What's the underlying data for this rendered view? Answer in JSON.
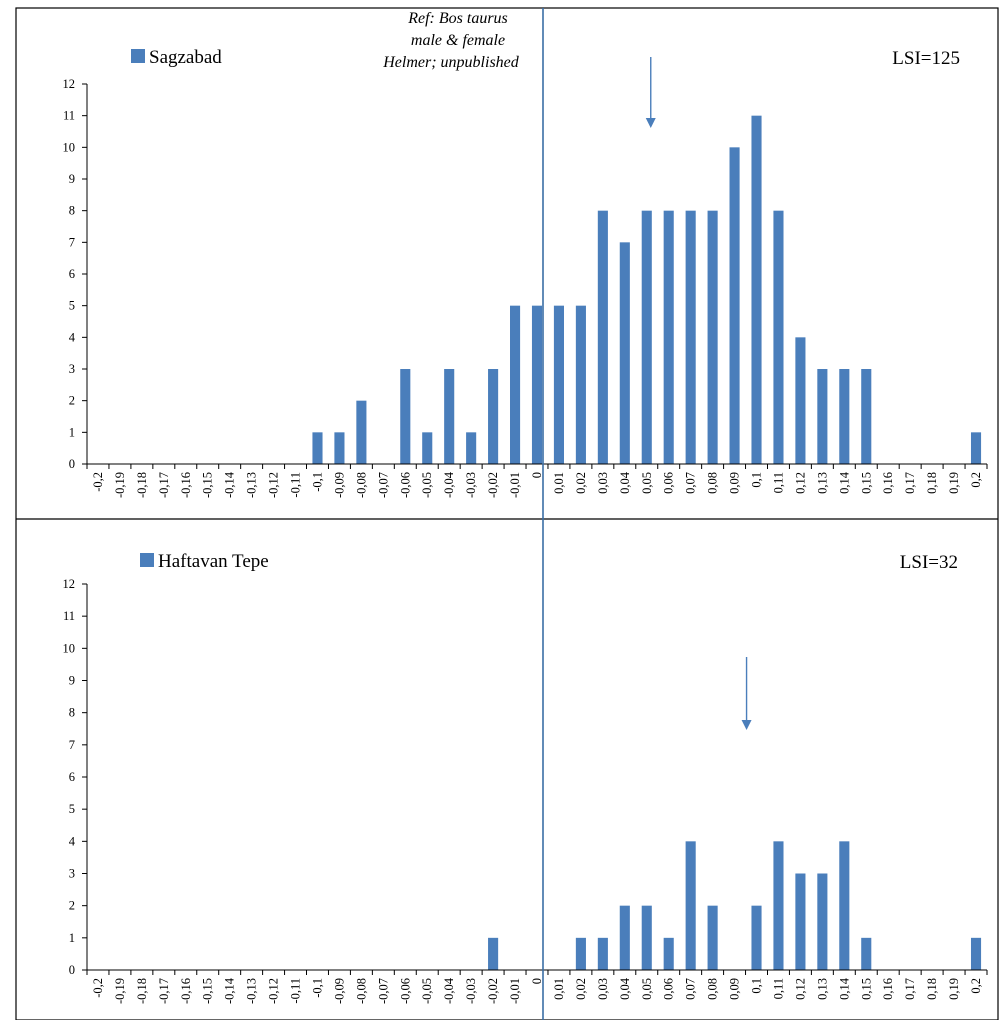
{
  "chart_data": [
    {
      "type": "bar",
      "legend_label": "Sagzabad",
      "legend_position": "top-left",
      "annotation": "LSI=125",
      "reference_note": [
        "Ref: Bos taurus",
        "male & female",
        "Helmer; unpublished"
      ],
      "marker_arrow_at": 0.05,
      "reference_line_at": 0,
      "categories": [
        "-0,2",
        "-0,19",
        "-0,18",
        "-0,17",
        "-0,16",
        "-0,15",
        "-0,14",
        "-0,13",
        "-0,12",
        "-0,11",
        "-0,1",
        "-0,09",
        "-0,08",
        "-0,07",
        "-0,06",
        "-0,05",
        "-0,04",
        "-0,03",
        "-0,02",
        "-0,01",
        "0",
        "0,01",
        "0,02",
        "0,03",
        "0,04",
        "0,05",
        "0,06",
        "0,07",
        "0,08",
        "0,09",
        "0,1",
        "0,11",
        "0,12",
        "0,13",
        "0,14",
        "0,15",
        "0,16",
        "0,17",
        "0,18",
        "0,19",
        "0,2"
      ],
      "values": [
        0,
        0,
        0,
        0,
        0,
        0,
        0,
        0,
        0,
        0,
        1,
        1,
        2,
        0,
        3,
        1,
        3,
        1,
        3,
        5,
        5,
        5,
        5,
        8,
        7,
        8,
        8,
        8,
        8,
        10,
        11,
        8,
        4,
        3,
        3,
        3,
        0,
        0,
        0,
        0,
        1
      ],
      "ylim": [
        0,
        12
      ],
      "yticks": [
        0,
        1,
        2,
        3,
        4,
        5,
        6,
        7,
        8,
        9,
        10,
        11,
        12
      ],
      "grid": false,
      "color": "#4a7ebb"
    },
    {
      "type": "bar",
      "legend_label": "Haftavan Tepe",
      "legend_position": "top-left",
      "annotation": "LSI=32",
      "marker_arrow_at": 0.09,
      "reference_line_at": 0,
      "categories": [
        "-0,2",
        "-0,19",
        "-0,18",
        "-0,17",
        "-0,16",
        "-0,15",
        "-0,14",
        "-0,13",
        "-0,12",
        "-0,11",
        "-0,1",
        "-0,09",
        "-0,08",
        "-0,07",
        "-0,06",
        "-0,05",
        "-0,04",
        "-0,03",
        "-0,02",
        "-0,01",
        "0",
        "0,01",
        "0,02",
        "0,03",
        "0,04",
        "0,05",
        "0,06",
        "0,07",
        "0,08",
        "0,09",
        "0,1",
        "0,11",
        "0,12",
        "0,13",
        "0,14",
        "0,15",
        "0,16",
        "0,17",
        "0,18",
        "0,19",
        "0,2"
      ],
      "values": [
        0,
        0,
        0,
        0,
        0,
        0,
        0,
        0,
        0,
        0,
        0,
        0,
        0,
        0,
        0,
        0,
        0,
        0,
        1,
        0,
        0,
        0,
        1,
        1,
        2,
        2,
        1,
        4,
        2,
        0,
        2,
        4,
        3,
        3,
        4,
        1,
        0,
        0,
        0,
        0,
        1
      ],
      "ylim": [
        0,
        12
      ],
      "yticks": [
        0,
        1,
        2,
        3,
        4,
        5,
        6,
        7,
        8,
        9,
        10,
        11,
        12
      ],
      "grid": false,
      "color": "#4a7ebb"
    }
  ]
}
